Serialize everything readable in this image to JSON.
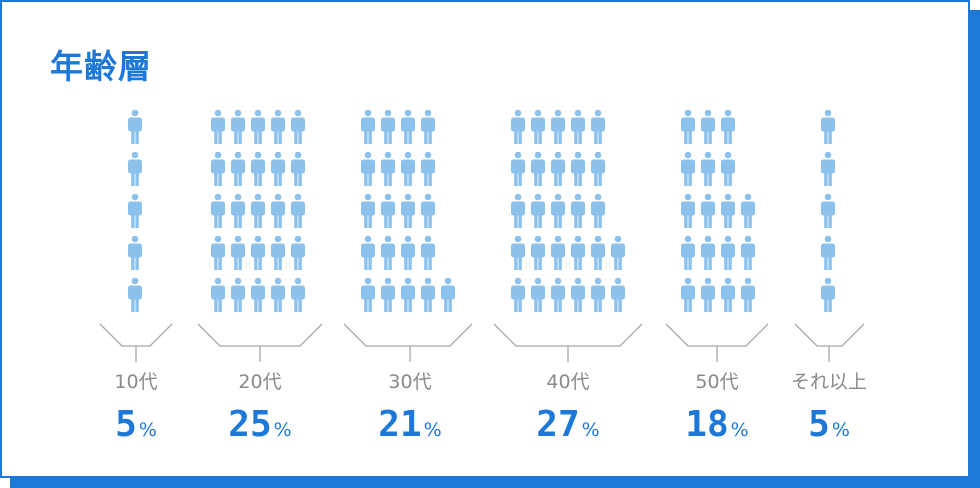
{
  "title": "年齢層",
  "colors": {
    "accent": "#1e78d8",
    "person": "#8cc1ec",
    "bracket": "#a8a8a8",
    "label": "#8a8a8a"
  },
  "chart_data": {
    "type": "bar",
    "title": "年齢層",
    "categories": [
      "10代",
      "20代",
      "30代",
      "40代",
      "50代",
      "それ以上"
    ],
    "values": [
      5,
      25,
      21,
      27,
      18,
      5
    ],
    "unit": "%"
  }
}
